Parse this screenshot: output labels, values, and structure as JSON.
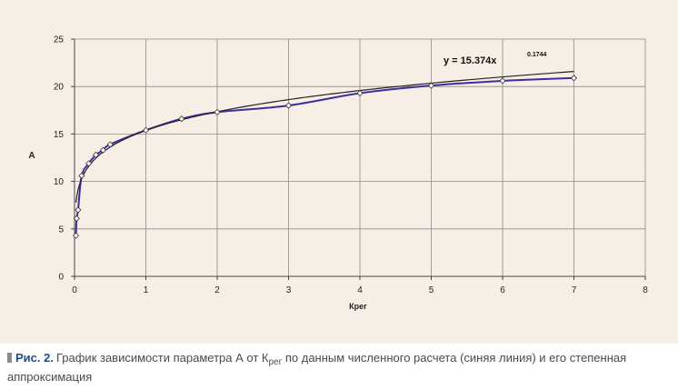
{
  "chart_data": {
    "type": "line",
    "xlabel": "Крег",
    "ylabel": "А",
    "xlim": [
      0,
      8
    ],
    "ylim": [
      0,
      25
    ],
    "xticks": [
      0,
      1,
      2,
      3,
      4,
      5,
      6,
      7,
      8
    ],
    "yticks": [
      0,
      5,
      10,
      15,
      20,
      25
    ],
    "grid": true,
    "legend": "none",
    "series": [
      {
        "kind": "data",
        "color": "#3a2fa0",
        "markers": "diamond",
        "x": [
          0.02,
          0.03,
          0.05,
          0.1,
          0.2,
          0.3,
          0.4,
          0.5,
          1.0,
          1.5,
          2.0,
          3.0,
          4.0,
          5.0,
          6.0,
          7.0
        ],
        "y": [
          4.3,
          6.1,
          7.0,
          10.6,
          11.9,
          12.8,
          13.3,
          13.9,
          15.4,
          16.6,
          17.3,
          18.0,
          19.3,
          20.1,
          20.6,
          20.9
        ]
      },
      {
        "kind": "fit",
        "color": "#222222",
        "coef": 15.374,
        "exponent": 0.1744,
        "x_range": [
          0.02,
          7.0
        ]
      }
    ],
    "annotation": {
      "text": "y = 15.374x",
      "superscript": "0.1744"
    }
  },
  "caption": {
    "label": "Рис. 2.",
    "text_before": "График зависимости параметра А от К",
    "subscript": "рег",
    "text_after": " по данным численного расчета (синяя линия) и его степенная аппроксимация"
  }
}
